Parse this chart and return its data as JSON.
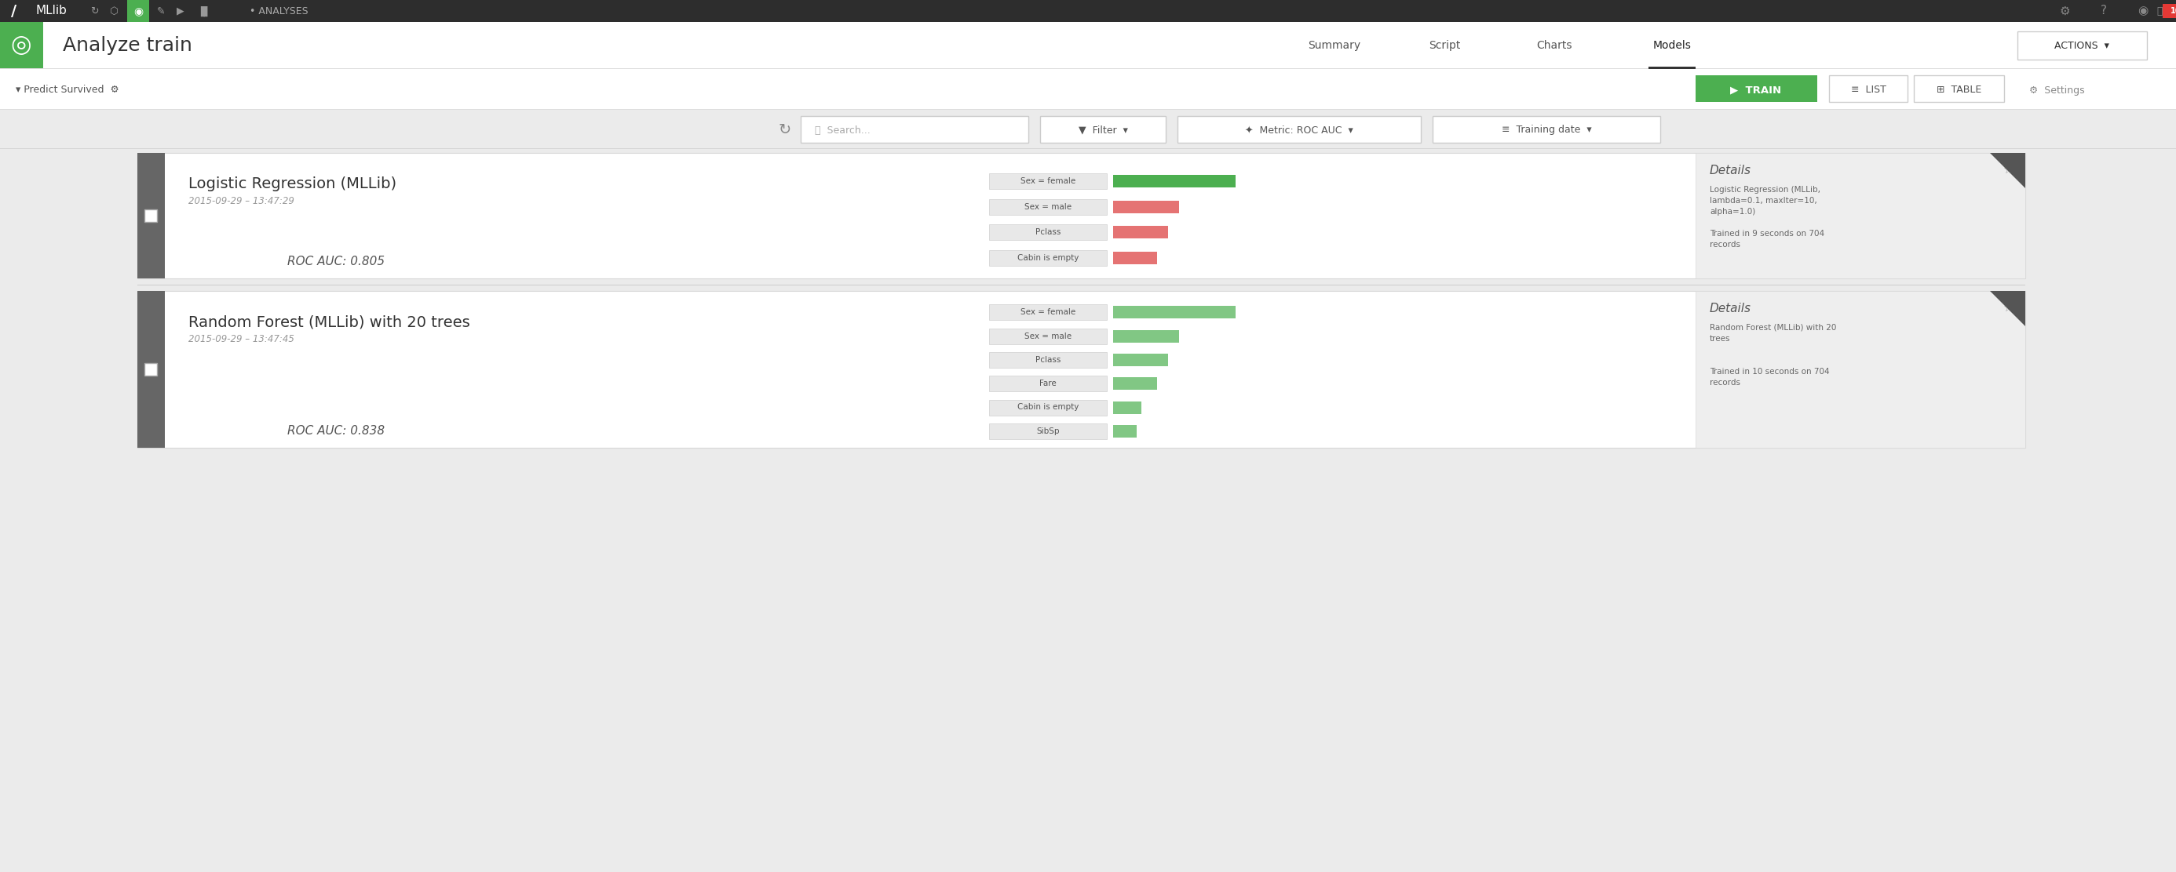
{
  "bg_color": "#ebebeb",
  "top_bar_color": "#2d2d2d",
  "header_bg": "#ffffff",
  "header_title": "Analyze train",
  "nav_tabs": [
    "Summary",
    "Script",
    "Charts",
    "Models"
  ],
  "active_tab": "Models",
  "accent_green": "#4caf50",
  "sidebar_color": "#666666",
  "model1_name": "Logistic Regression (MLLib)",
  "model1_date": "2015-09-29 – 13:47:29",
  "model1_roc": "ROC AUC: 0.805",
  "model1_features": [
    "Sex = female",
    "Sex = male",
    "Pclass",
    "Cabin is empty"
  ],
  "model1_bar_colors": [
    "#4caf50",
    "#e57373",
    "#e57373",
    "#e57373"
  ],
  "model1_bar_values": [
    0.78,
    0.42,
    0.35,
    0.28
  ],
  "model1_details_line1": "Logistic Regression (MLLib,",
  "model1_details_line2": "lambda=0.1, maxIter=10,",
  "model1_details_line3": "alpha=1.0)",
  "model1_details_line4": "Trained in 9 seconds on 704",
  "model1_details_line5": "records",
  "model2_name": "Random Forest (MLLib) with 20 trees",
  "model2_date": "2015-09-29 – 13:47:45",
  "model2_roc": "ROC AUC: 0.838",
  "model2_features": [
    "Sex = female",
    "Sex = male",
    "Pclass",
    "Fare",
    "Cabin is empty",
    "SibSp"
  ],
  "model2_bar_colors": [
    "#81c784",
    "#81c784",
    "#81c784",
    "#81c784",
    "#81c784",
    "#81c784"
  ],
  "model2_bar_values": [
    0.78,
    0.42,
    0.35,
    0.28,
    0.18,
    0.15
  ],
  "model2_details_line1": "Random Forest (MLLib) with 20",
  "model2_details_line2": "trees",
  "model2_details_line3": "",
  "model2_details_line4": "Trained in 10 seconds on 704",
  "model2_details_line5": "records",
  "pill_bg": "#e8e8e8",
  "pill_border": "#d0d0d0",
  "details_bg": "#eeeeee",
  "card_border": "#d8d8d8",
  "toolbar_bg": "#e8e8e8"
}
